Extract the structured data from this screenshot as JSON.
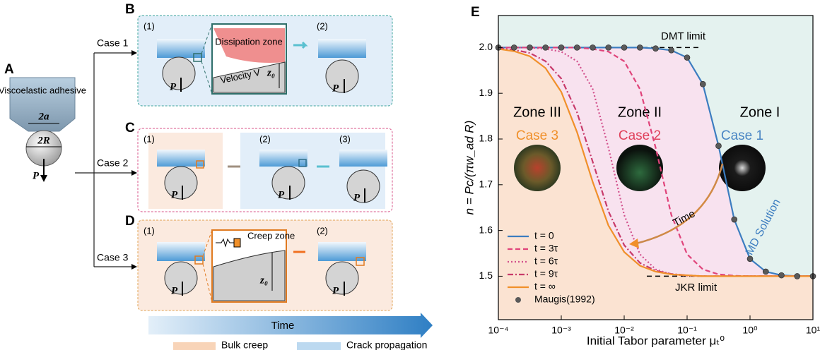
{
  "panels": {
    "A": {
      "letter": "A",
      "adhesive": "Viscoelastic adhesive",
      "contact": "2a",
      "radius": "2R",
      "load": "P"
    },
    "cases": [
      "Case 1",
      "Case 2",
      "Case 3"
    ],
    "B": {
      "letter": "B",
      "steps": [
        "(1)",
        "(2)"
      ],
      "zone": "Dissipation zone",
      "velocity": "Velocity V",
      "gap": "z₀",
      "load": "P"
    },
    "C": {
      "letter": "C",
      "steps": [
        "(1)",
        "(2)",
        "(3)"
      ],
      "load": "P"
    },
    "D": {
      "letter": "D",
      "steps": [
        "(1)",
        "(2)"
      ],
      "zone": "Creep zone",
      "gap": "z₀",
      "load": "P"
    },
    "timeline": {
      "label": "Time",
      "legend": [
        "Bulk creep",
        "Crack propagation"
      ]
    }
  },
  "chart_data": {
    "type": "line",
    "panel_letter": "E",
    "xlabel": "Initial Tabor parameter μₜ⁰",
    "ylabel": "n = Pc/(πw_ad R)",
    "log_x": true,
    "legend": "lower left",
    "xlim": [
      0.0001,
      10
    ],
    "ylim": [
      1.405,
      2.07
    ],
    "xticks": [
      {
        "value": 0.0001,
        "label": "10⁻⁴"
      },
      {
        "value": 0.001,
        "label": "10⁻³"
      },
      {
        "value": 0.01,
        "label": "10⁻²"
      },
      {
        "value": 0.1,
        "label": "10⁻¹"
      },
      {
        "value": 1,
        "label": "10⁰"
      },
      {
        "value": 10,
        "label": "10¹"
      }
    ],
    "yticks": [
      1.5,
      1.6,
      1.7,
      1.8,
      1.9,
      {
        "value": 2,
        "label": "2.0"
      }
    ],
    "x": [
      0.0001,
      0.000178,
      0.000316,
      0.000562,
      0.001,
      0.00178,
      0.00316,
      0.00562,
      0.01,
      0.0178,
      0.0316,
      0.0562,
      0.1,
      0.178,
      0.316,
      0.562,
      1,
      1.78,
      3.16,
      5.62,
      10
    ],
    "series": [
      {
        "name": "t = 0",
        "color": "#3c7dc0",
        "dash": "solid",
        "values": [
          2,
          2,
          2,
          2,
          2,
          2,
          2,
          2,
          2,
          2,
          1.998,
          1.994,
          1.978,
          1.92,
          1.785,
          1.624,
          1.538,
          1.51,
          1.502,
          1.5,
          1.5
        ]
      },
      {
        "name": "t = 3τ",
        "color": "#e0437a",
        "dash": "dashed",
        "values": [
          2,
          2,
          2,
          2,
          2,
          2,
          1.997,
          1.991,
          1.97,
          1.909,
          1.781,
          1.634,
          1.548,
          1.515,
          1.504,
          1.501,
          1.5,
          1.5,
          1.5,
          1.5,
          1.5
        ]
      },
      {
        "name": "t = 6τ",
        "color": "#d2508c",
        "dash": "dotted",
        "values": [
          2,
          2,
          2,
          1.997,
          1.991,
          1.97,
          1.909,
          1.781,
          1.634,
          1.548,
          1.515,
          1.504,
          1.501,
          1.5,
          1.5,
          1.5,
          1.5,
          1.5,
          1.5,
          1.5,
          1.5
        ]
      },
      {
        "name": "t = 9τ",
        "color": "#c83a6a",
        "dash": "dashdot",
        "values": [
          1.998,
          1.995,
          1.988,
          1.97,
          1.932,
          1.858,
          1.75,
          1.642,
          1.568,
          1.529,
          1.512,
          1.505,
          1.502,
          1.5,
          1.5,
          1.5,
          1.5,
          1.5,
          1.5,
          1.5,
          1.5
        ]
      },
      {
        "name": "t = ∞",
        "color": "#f0902a",
        "dash": "solid",
        "values": [
          1.997,
          1.992,
          1.981,
          1.955,
          1.903,
          1.815,
          1.706,
          1.611,
          1.553,
          1.523,
          1.51,
          1.504,
          1.502,
          1.5,
          1.5,
          1.5,
          1.5,
          1.5,
          1.5,
          1.5,
          1.5
        ]
      },
      {
        "name": "Maugis(1992)",
        "color": "#5a5a5a",
        "marker": "circle",
        "values": [
          2,
          2,
          2,
          2,
          2,
          2,
          2,
          2,
          2,
          2,
          1.998,
          1.994,
          1.978,
          1.92,
          1.785,
          1.624,
          1.538,
          1.51,
          1.502,
          1.5,
          1.5
        ]
      }
    ],
    "zones": [
      {
        "label": "Zone III",
        "color": "#fbe3d2"
      },
      {
        "label": "Zone II",
        "color": "#f8e2ef"
      },
      {
        "label": "Zone I",
        "color": "#e4f2ef"
      }
    ],
    "cases": [
      {
        "label": "Case 3",
        "color": "#f0902a"
      },
      {
        "label": "Case 2",
        "color": "#e0405a"
      },
      {
        "label": "Case 1",
        "color": "#4a86c4"
      }
    ],
    "limits": [
      {
        "label": "DMT limit",
        "value": 2
      },
      {
        "label": "JKR limit",
        "value": 1.5
      }
    ],
    "annotations": [
      {
        "text": "Time",
        "color": "#000000"
      },
      {
        "text": "MD Solution",
        "color": "#3c7dc0"
      }
    ]
  }
}
